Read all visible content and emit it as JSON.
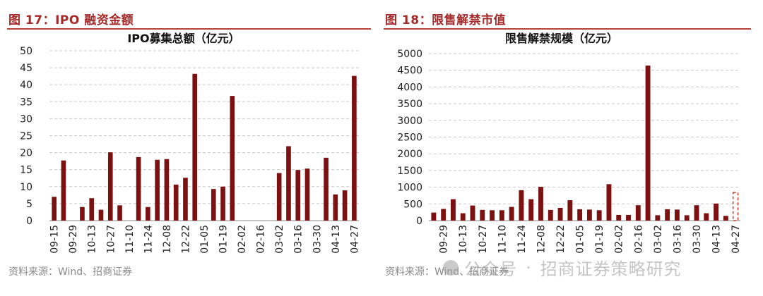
{
  "figures": [
    {
      "title": "图 17：IPO 融资金额",
      "source": "资料来源：Wind、招商证券"
    },
    {
      "title": "图 18：限售解禁市值",
      "source": "资料来源：Wind、招商证券"
    }
  ],
  "watermark": {
    "account": "公众号",
    "name": "招商证券策略研究"
  },
  "colors": {
    "bar": "#7b1111",
    "bar_partial_outline": "#c0392b",
    "grid": "#c8c8c8",
    "axis_text": "#222222"
  },
  "chart_data": [
    {
      "type": "bar",
      "title": "IPO募集总额（亿元）",
      "xlabel": "",
      "ylabel": "",
      "ylim": [
        0,
        50
      ],
      "yticks": [
        0,
        5,
        10,
        15,
        20,
        25,
        30,
        35,
        40,
        45,
        50
      ],
      "grid": true,
      "tick_labels": [
        "09-15",
        "09-29",
        "10-13",
        "10-27",
        "11-10",
        "11-24",
        "12-08",
        "12-22",
        "01-05",
        "01-19",
        "02-02",
        "02-16",
        "03-02",
        "03-16",
        "03-30",
        "04-13",
        "04-27"
      ],
      "values": [
        7.0,
        17.7,
        0,
        4.0,
        6.6,
        3.2,
        20.1,
        4.5,
        0,
        18.7,
        4.0,
        17.9,
        18.1,
        10.6,
        12.6,
        43.2,
        0,
        9.3,
        10.0,
        36.7,
        0,
        0,
        0,
        0,
        14.0,
        21.9,
        14.9,
        15.3,
        0,
        18.5,
        7.7,
        8.9,
        42.6
      ]
    },
    {
      "type": "bar",
      "title": "限售解禁规模（亿元）",
      "xlabel": "",
      "ylabel": "",
      "ylim": [
        0,
        5000
      ],
      "yticks": [
        0,
        500,
        1000,
        1500,
        2000,
        2500,
        3000,
        3500,
        4000,
        4500,
        5000
      ],
      "grid": true,
      "tick_labels": [
        "09-29",
        "10-13",
        "10-27",
        "11-10",
        "11-24",
        "12-08",
        "12-22",
        "01-05",
        "01-19",
        "02-02",
        "02-16",
        "03-02",
        "03-16",
        "03-30",
        "04-13",
        "04-27"
      ],
      "values": [
        240,
        350,
        640,
        220,
        450,
        320,
        310,
        310,
        410,
        910,
        640,
        1010,
        320,
        380,
        610,
        340,
        330,
        310,
        1090,
        170,
        170,
        460,
        4640,
        160,
        340,
        330,
        160,
        460,
        220,
        510,
        140,
        840
      ],
      "last_bar_style": "dashed-outline"
    }
  ]
}
